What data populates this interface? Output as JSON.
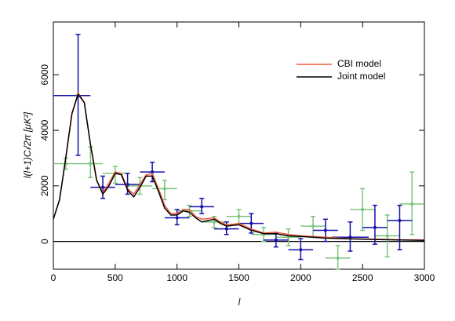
{
  "chart_data": {
    "type": "scatter",
    "x_label": "l",
    "y_label": "l(l+1)Cₗ/2π [μK²]",
    "xlim": [
      0,
      3000
    ],
    "ylim": [
      -1000,
      7900
    ],
    "xticks": [
      0,
      500,
      1000,
      1500,
      2000,
      2500,
      3000
    ],
    "yticks": [
      0,
      2000,
      4000,
      6000
    ],
    "legend": "upper right",
    "points": [
      {
        "color": "#7cc47c",
        "x": [
          100,
          300,
          500,
          700,
          900,
          1100,
          1300,
          1500,
          1700,
          1900,
          2100,
          2300,
          2500,
          2700,
          2900
        ],
        "y": [
          2800,
          2800,
          2450,
          2000,
          1900,
          1100,
          700,
          900,
          250,
          150,
          550,
          -600,
          1150,
          200,
          1350
        ],
        "x_lo": [
          0,
          200,
          400,
          600,
          800,
          1000,
          1200,
          1400,
          1600,
          1800,
          2000,
          2200,
          2400,
          2600,
          2800
        ],
        "x_hi": [
          200,
          400,
          600,
          800,
          1000,
          1200,
          1400,
          1600,
          1800,
          2000,
          2200,
          2400,
          2600,
          2800,
          3000
        ],
        "y_lo": [
          2600,
          2300,
          2100,
          1700,
          1500,
          900,
          500,
          650,
          0,
          -150,
          150,
          -1000,
          400,
          -550,
          250
        ],
        "y_hi": [
          3000,
          3400,
          2700,
          2300,
          2200,
          1300,
          900,
          1150,
          500,
          450,
          900,
          -150,
          1900,
          950,
          2500
        ]
      },
      {
        "color": "#1010a8",
        "x": [
          200,
          400,
          600,
          800,
          1000,
          1200,
          1400,
          1600,
          1800,
          2000,
          2200,
          2400,
          2600,
          2800
        ],
        "y": [
          5250,
          1950,
          2050,
          2500,
          850,
          1250,
          450,
          650,
          50,
          -300,
          400,
          150,
          500,
          750
        ],
        "x_lo": [
          0,
          300,
          500,
          700,
          900,
          1100,
          1300,
          1500,
          1700,
          1900,
          2100,
          2250,
          2500,
          2700
        ],
        "x_hi": [
          300,
          500,
          700,
          900,
          1100,
          1300,
          1500,
          1700,
          1900,
          2100,
          2300,
          2550,
          2700,
          2900
        ],
        "y_lo": [
          3100,
          1550,
          1700,
          2150,
          600,
          1000,
          250,
          300,
          -200,
          -650,
          0,
          -350,
          -100,
          -300
        ],
        "y_hi": [
          7450,
          2350,
          2450,
          2850,
          1150,
          1550,
          700,
          1000,
          300,
          100,
          800,
          700,
          1300,
          1300
        ]
      }
    ],
    "x": [
      0,
      50,
      100,
      150,
      200,
      250,
      300,
      350,
      400,
      450,
      500,
      550,
      600,
      650,
      700,
      750,
      800,
      850,
      900,
      950,
      1000,
      1050,
      1100,
      1150,
      1200,
      1250,
      1300,
      1350,
      1400,
      1450,
      1500,
      1600,
      1700,
      1800,
      1900,
      2000,
      2200,
      2400,
      2600,
      2800,
      3000
    ],
    "series": [
      {
        "name": "CBI model",
        "color": "#f05a3c",
        "values": [
          800,
          1500,
          3000,
          4600,
          5350,
          5000,
          3500,
          2200,
          1750,
          2100,
          2500,
          2450,
          1900,
          1700,
          2050,
          2400,
          2450,
          1900,
          1300,
          1000,
          1000,
          1150,
          1150,
          900,
          800,
          820,
          850,
          700,
          600,
          620,
          650,
          450,
          300,
          330,
          250,
          200,
          150,
          100,
          80,
          60,
          50
        ]
      },
      {
        "name": "Joint model",
        "color": "#000000",
        "values": [
          800,
          1500,
          3000,
          4600,
          5300,
          5000,
          3500,
          2200,
          1700,
          2000,
          2450,
          2400,
          1850,
          1600,
          1950,
          2350,
          2350,
          1800,
          1200,
          950,
          950,
          1100,
          1050,
          850,
          700,
          750,
          800,
          650,
          550,
          580,
          600,
          400,
          280,
          280,
          200,
          180,
          120,
          90,
          70,
          50,
          40
        ]
      }
    ]
  }
}
